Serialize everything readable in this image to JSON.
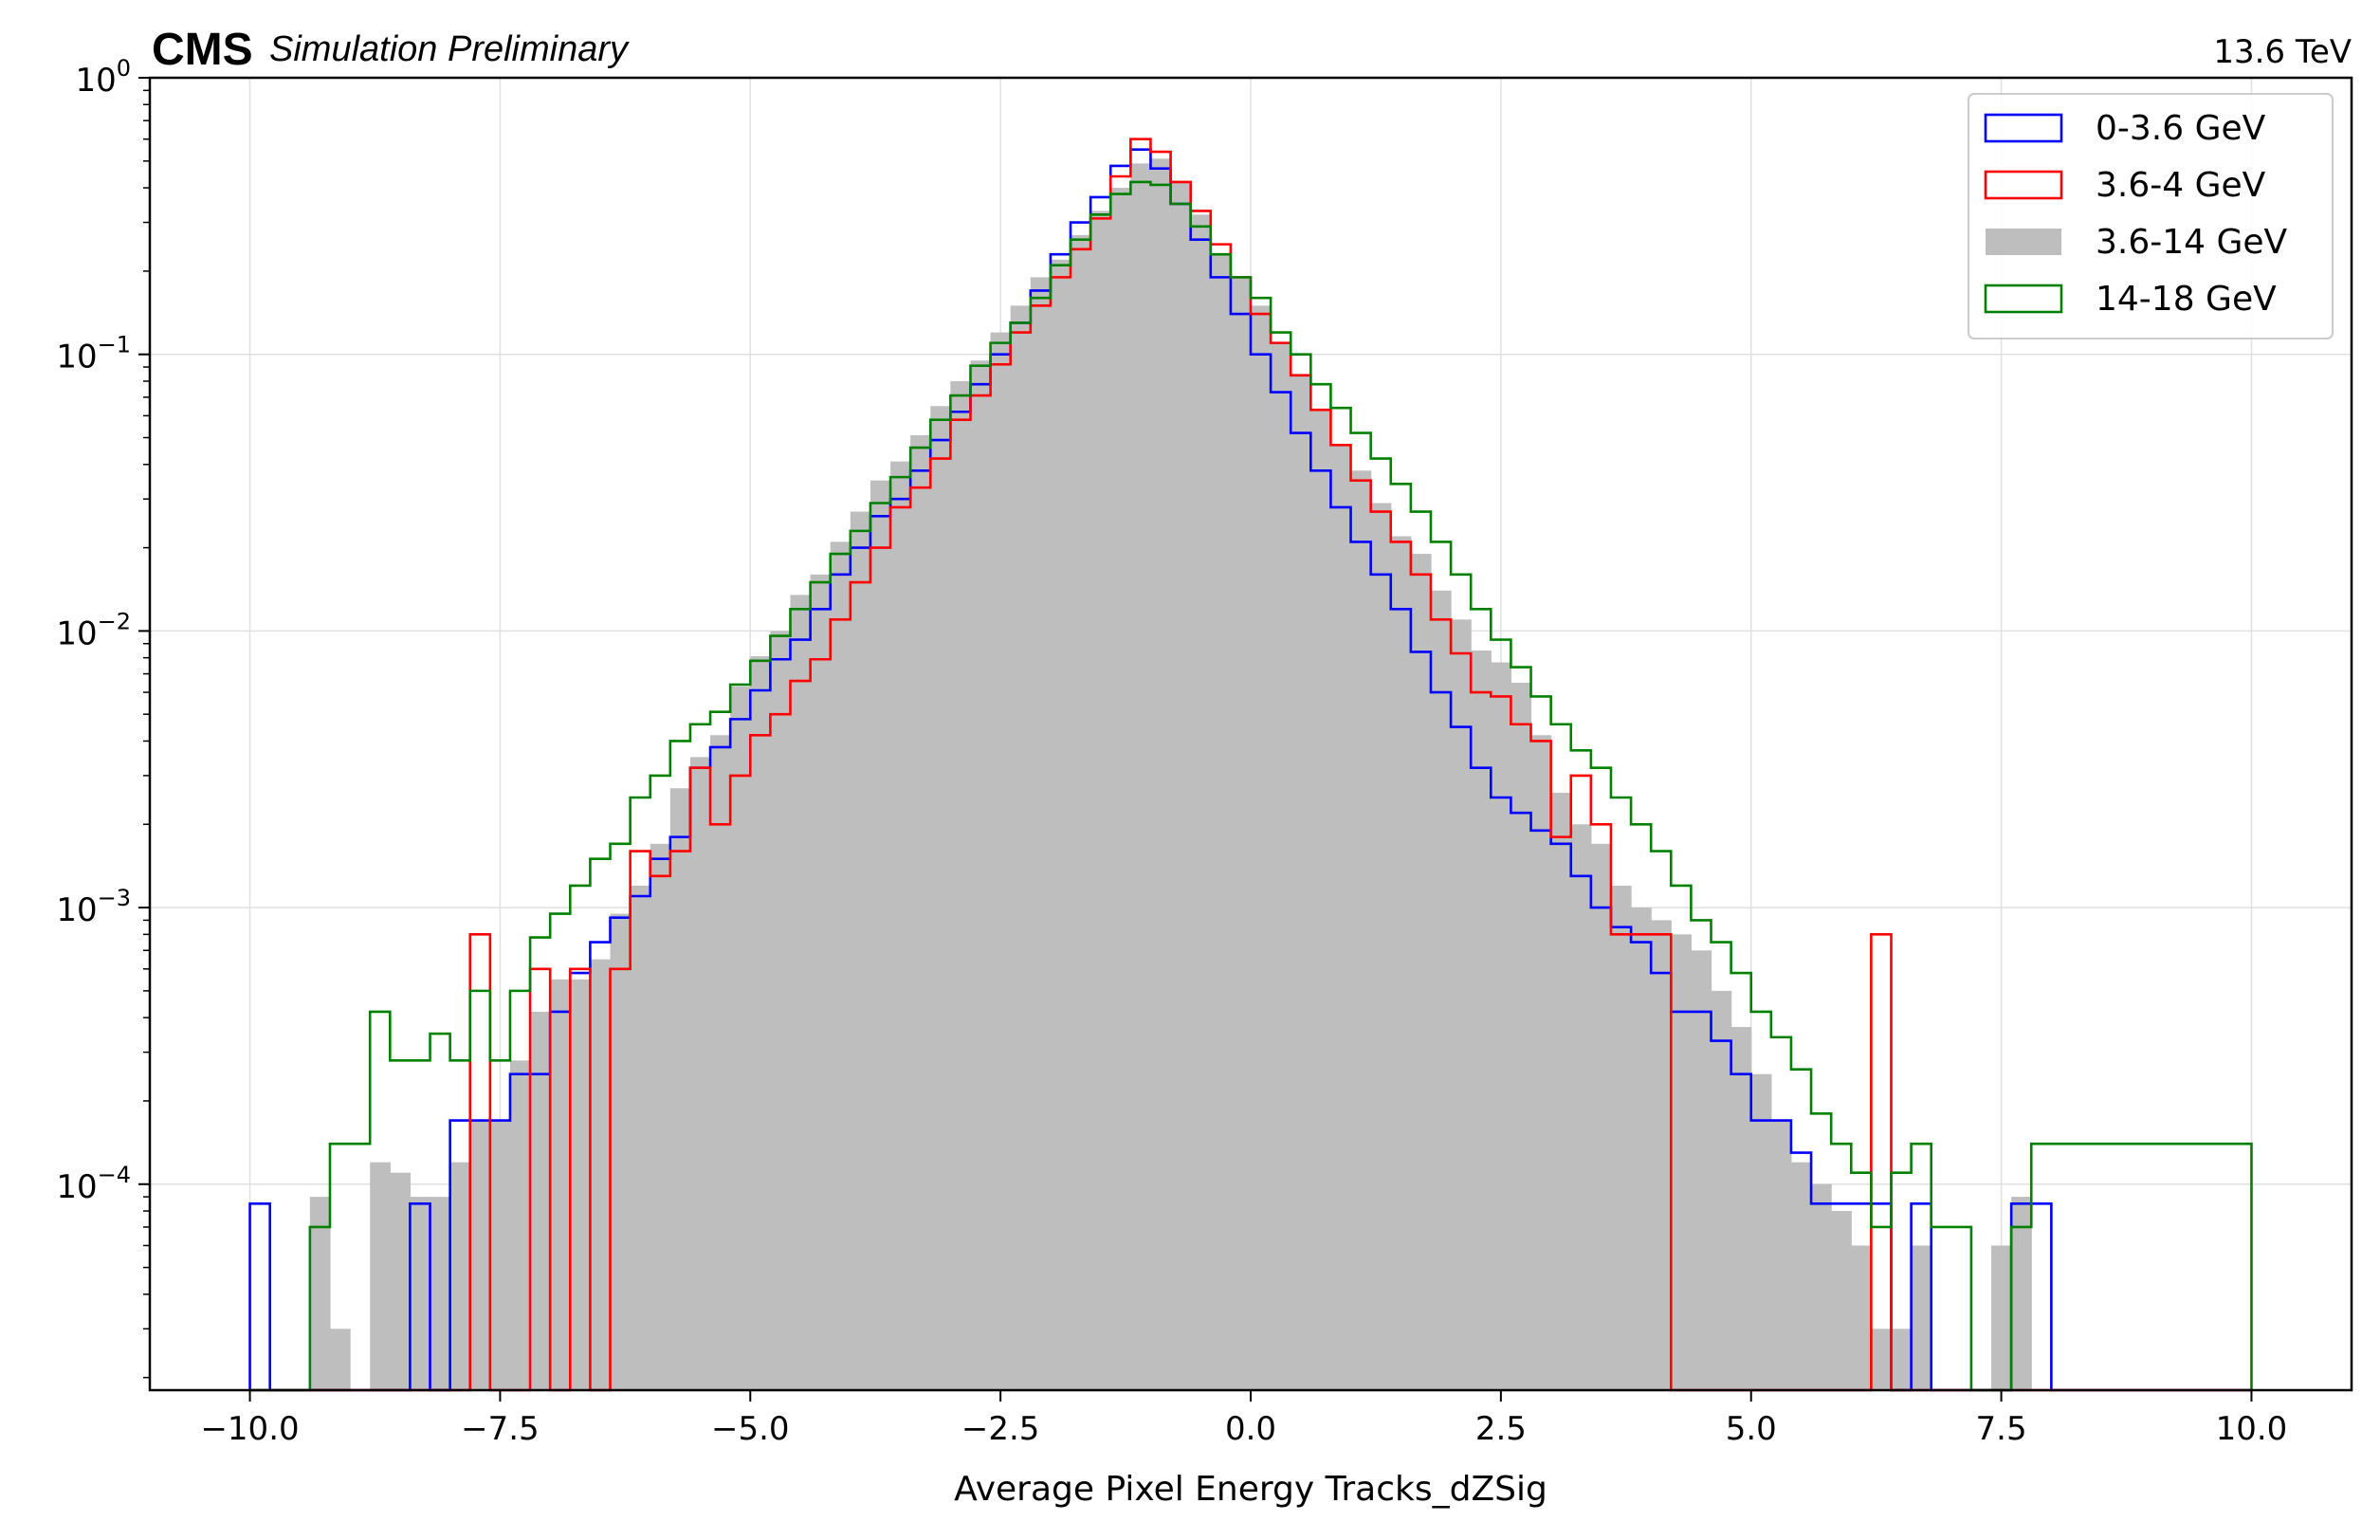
{
  "header": {
    "experiment": "CMS",
    "subtitle": "Simulation Preliminary",
    "energy": "13.6 TeV"
  },
  "chart_data": {
    "type": "histogram",
    "xlabel": "Average Pixel Energy Tracks_dZSig",
    "ylabel": "",
    "xlim": [
      -11.0,
      11.0
    ],
    "ylim": [
      1.8e-05,
      1.0
    ],
    "yscale": "log",
    "grid": true,
    "legend_position": "top-right",
    "x_ticks": [
      -10.0,
      -7.5,
      -5.0,
      -2.5,
      0.0,
      2.5,
      5.0,
      7.5,
      10.0
    ],
    "x_tick_labels": [
      "−10.0",
      "−7.5",
      "−5.0",
      "−2.5",
      "0.0",
      "2.5",
      "5.0",
      "7.5",
      "10.0"
    ],
    "y_ticks": [
      {
        "value": 1.0,
        "base": "10",
        "exp": "0"
      },
      {
        "value": 0.1,
        "base": "10",
        "exp": "−1"
      },
      {
        "value": 0.01,
        "base": "10",
        "exp": "−2"
      },
      {
        "value": 0.001,
        "base": "10",
        "exp": "−3"
      },
      {
        "value": 0.0001,
        "base": "10",
        "exp": "−4"
      }
    ],
    "bin_edges": [
      -10.0,
      10.0
    ],
    "n_bins": 100,
    "series": [
      {
        "name": "3.6-14 GeV",
        "style": "filled",
        "color": "#bebebe",
        "values": [
          0,
          0,
          0,
          9e-05,
          3e-05,
          0,
          0.00012,
          0.00011,
          9e-05,
          9e-05,
          0.00012,
          0.00017,
          0.00017,
          0.00028,
          0.00042,
          0.00055,
          0.00055,
          0.00065,
          0.00095,
          0.0012,
          0.0017,
          0.0027,
          0.0035,
          0.0042,
          0.0063,
          0.0081,
          0.01,
          0.0135,
          0.016,
          0.021,
          0.027,
          0.035,
          0.041,
          0.051,
          0.065,
          0.08,
          0.095,
          0.12,
          0.15,
          0.19,
          0.22,
          0.27,
          0.33,
          0.4,
          0.49,
          0.51,
          0.42,
          0.32,
          0.23,
          0.19,
          0.15,
          0.11,
          0.085,
          0.063,
          0.047,
          0.038,
          0.029,
          0.022,
          0.019,
          0.014,
          0.011,
          0.0085,
          0.0077,
          0.0065,
          0.0042,
          0.0026,
          0.002,
          0.0017,
          0.0012,
          0.001,
          0.0009,
          0.0008,
          0.0007,
          0.0005,
          0.00037,
          0.00025,
          0.00017,
          0.00012,
          0.0001,
          8e-05,
          6e-05,
          3e-05,
          3e-05,
          6e-05,
          0,
          0,
          0,
          6e-05,
          9e-05,
          0,
          0,
          0,
          0,
          0,
          0,
          0,
          0,
          0,
          0,
          0
        ]
      },
      {
        "name": "0-3.6 GeV",
        "style": "step",
        "color": "#0000ff",
        "values": [
          8.5e-05,
          0,
          0,
          0,
          0,
          0,
          0,
          0,
          8.5e-05,
          0,
          0.00017,
          0.00017,
          0.00017,
          0.00025,
          0.00025,
          0.00042,
          0.00058,
          0.00075,
          0.00092,
          0.0011,
          0.0015,
          0.0018,
          0.0032,
          0.0038,
          0.0048,
          0.0061,
          0.0079,
          0.0093,
          0.012,
          0.016,
          0.02,
          0.026,
          0.03,
          0.038,
          0.049,
          0.062,
          0.078,
          0.1,
          0.13,
          0.17,
          0.23,
          0.3,
          0.37,
          0.48,
          0.55,
          0.47,
          0.35,
          0.26,
          0.19,
          0.14,
          0.1,
          0.073,
          0.052,
          0.038,
          0.028,
          0.021,
          0.016,
          0.012,
          0.0084,
          0.006,
          0.0045,
          0.0032,
          0.0025,
          0.0022,
          0.0019,
          0.0017,
          0.0013,
          0.001,
          0.00085,
          0.00075,
          0.00058,
          0.00042,
          0.00042,
          0.00033,
          0.00025,
          0.00017,
          0.00017,
          0.00013,
          8.5e-05,
          8.5e-05,
          8.5e-05,
          8.5e-05,
          0,
          8.5e-05,
          0,
          0,
          0,
          0,
          8.5e-05,
          8.5e-05,
          0,
          0,
          0,
          0,
          0,
          0,
          0,
          0,
          0,
          0
        ]
      },
      {
        "name": "3.6-4 GeV",
        "style": "step",
        "color": "#ff0000",
        "values": [
          0,
          0,
          0,
          0,
          0,
          0,
          0,
          0,
          0,
          0,
          0,
          0.0008,
          0,
          0,
          0.0006,
          0,
          0.0006,
          0,
          0.0006,
          0.0016,
          0.0013,
          0.0016,
          0.0032,
          0.002,
          0.003,
          0.0042,
          0.005,
          0.0066,
          0.0079,
          0.011,
          0.015,
          0.02,
          0.028,
          0.033,
          0.042,
          0.058,
          0.071,
          0.092,
          0.12,
          0.15,
          0.19,
          0.24,
          0.31,
          0.44,
          0.6,
          0.54,
          0.42,
          0.33,
          0.25,
          0.19,
          0.14,
          0.11,
          0.084,
          0.063,
          0.047,
          0.035,
          0.027,
          0.021,
          0.016,
          0.011,
          0.0083,
          0.006,
          0.0058,
          0.0046,
          0.004,
          0.0018,
          0.003,
          0.002,
          0.0008,
          0.0008,
          0.0008,
          0,
          0,
          0,
          0,
          0,
          0,
          0,
          0,
          0,
          0,
          0.0008,
          0,
          0,
          0,
          0,
          0,
          0,
          0,
          0,
          0,
          0,
          0,
          0,
          0,
          0,
          0,
          0,
          0,
          0
        ]
      },
      {
        "name": "14-18 GeV",
        "style": "step",
        "color": "#008000",
        "values": [
          0,
          0,
          0,
          7e-05,
          0.00014,
          0.00014,
          0.00042,
          0.00028,
          0.00028,
          0.00035,
          0.00028,
          0.0005,
          0.00028,
          0.0005,
          0.00078,
          0.00095,
          0.0012,
          0.0015,
          0.0017,
          0.0025,
          0.003,
          0.004,
          0.0046,
          0.0051,
          0.0064,
          0.0078,
          0.0096,
          0.012,
          0.015,
          0.019,
          0.023,
          0.029,
          0.036,
          0.046,
          0.058,
          0.071,
          0.091,
          0.11,
          0.13,
          0.16,
          0.21,
          0.26,
          0.32,
          0.38,
          0.42,
          0.41,
          0.35,
          0.29,
          0.23,
          0.19,
          0.16,
          0.12,
          0.1,
          0.078,
          0.064,
          0.052,
          0.042,
          0.034,
          0.027,
          0.021,
          0.016,
          0.012,
          0.0093,
          0.0074,
          0.0058,
          0.0046,
          0.0037,
          0.0032,
          0.0025,
          0.002,
          0.0016,
          0.0012,
          0.0009,
          0.00075,
          0.00058,
          0.00042,
          0.00034,
          0.00026,
          0.00018,
          0.00014,
          0.00011,
          7e-05,
          0.00011,
          0.00014,
          7e-05,
          7e-05,
          0,
          0,
          7e-05,
          0.00014,
          0.00014,
          0.00014,
          0.00014,
          0.00014,
          0.00014,
          0.00014,
          0.00014,
          0.00014,
          0.00014,
          0.00014
        ]
      }
    ]
  }
}
